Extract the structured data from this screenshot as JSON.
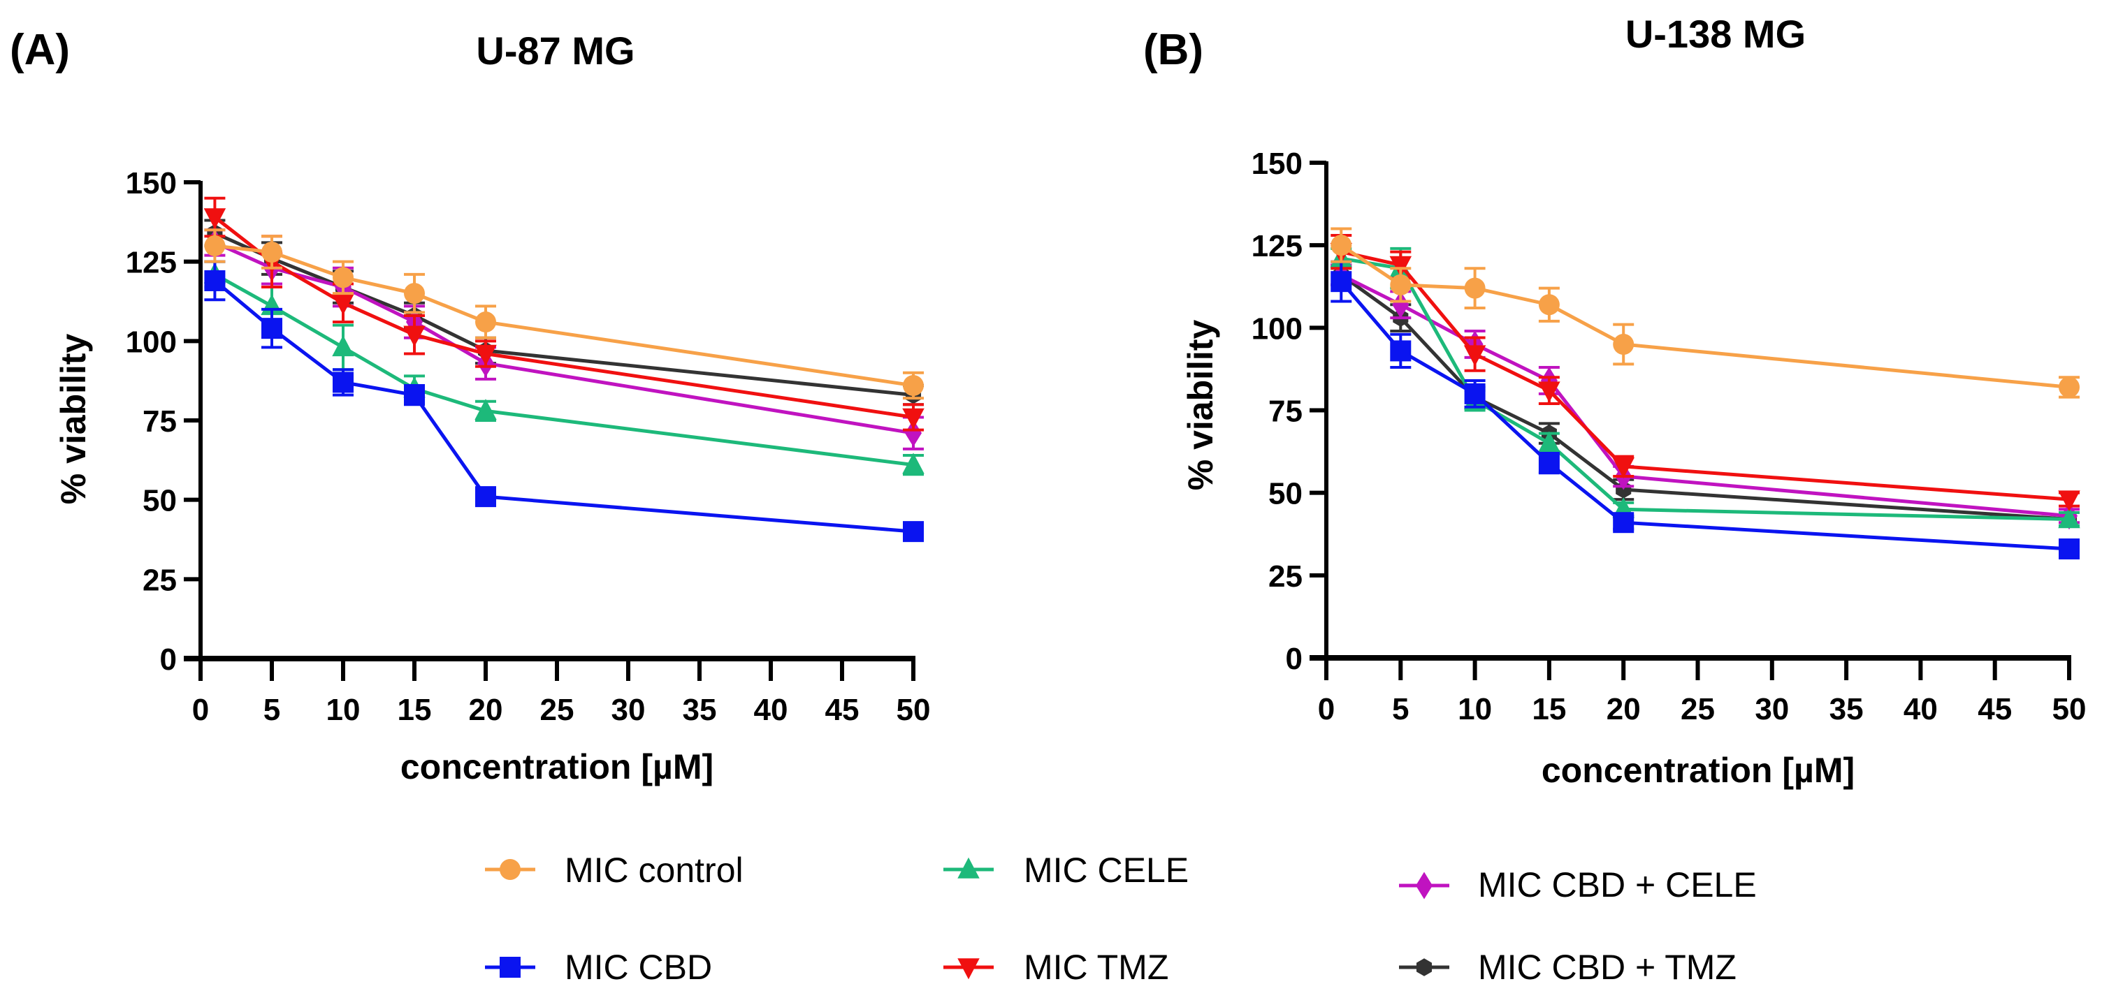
{
  "figure": {
    "legend": [
      {
        "key": "control",
        "label": "MIC control",
        "color": "#F7A148",
        "marker": "circle"
      },
      {
        "key": "cele",
        "label": "MIC CELE",
        "color": "#1DB97A",
        "marker": "triangle-up"
      },
      {
        "key": "cbd_cele",
        "label": "MIC CBD + CELE",
        "color": "#C013C0",
        "marker": "diamond"
      },
      {
        "key": "cbd",
        "label": "MIC CBD",
        "color": "#0A14F0",
        "marker": "square"
      },
      {
        "key": "tmz",
        "label": "MIC TMZ",
        "color": "#F01010",
        "marker": "triangle-down"
      },
      {
        "key": "cbd_tmz",
        "label": "MIC CBD + TMZ",
        "color": "#333333",
        "marker": "hexagon"
      }
    ]
  },
  "chart_data": [
    {
      "type": "line",
      "panel": "(A)",
      "title": "U-87 MG",
      "xlabel": "concentration [µM]",
      "ylabel": "% viability",
      "xlim": [
        0,
        50
      ],
      "ylim": [
        0,
        150
      ],
      "xticks": [
        0,
        5,
        10,
        15,
        20,
        25,
        30,
        35,
        40,
        45,
        50
      ],
      "yticks": [
        0,
        25,
        50,
        75,
        100,
        125,
        150
      ],
      "grid": false,
      "legend_position": "bottom",
      "x": [
        1,
        5,
        10,
        15,
        20,
        50
      ],
      "series": [
        {
          "key": "control",
          "name": "MIC control",
          "values": [
            130,
            128,
            120,
            115,
            106,
            86
          ],
          "errors": [
            5,
            5,
            5,
            6,
            5,
            4
          ]
        },
        {
          "key": "cele",
          "name": "MIC CELE",
          "values": [
            121,
            111,
            98,
            85,
            78,
            61
          ],
          "errors": [
            4,
            6,
            7,
            4,
            3,
            3
          ]
        },
        {
          "key": "cbd_cele",
          "name": "MIC CBD + CELE",
          "values": [
            131,
            123,
            117,
            106,
            93,
            71
          ],
          "errors": [
            4,
            5,
            6,
            5,
            5,
            5
          ]
        },
        {
          "key": "cbd",
          "name": "MIC CBD",
          "values": [
            119,
            104,
            87,
            83,
            51,
            40
          ],
          "errors": [
            6,
            6,
            4,
            3,
            2,
            2
          ]
        },
        {
          "key": "tmz",
          "name": "MIC TMZ",
          "values": [
            139,
            125,
            112,
            102,
            96,
            76
          ],
          "errors": [
            6,
            8,
            6,
            6,
            4,
            4
          ]
        },
        {
          "key": "cbd_tmz",
          "name": "MIC CBD + TMZ",
          "values": [
            134,
            126,
            117,
            108,
            97,
            83
          ],
          "errors": [
            4,
            5,
            5,
            4,
            4,
            3
          ]
        }
      ]
    },
    {
      "type": "line",
      "panel": "(B)",
      "title": "U-138 MG",
      "xlabel": "concentration [µM]",
      "ylabel": "% viability",
      "xlim": [
        0,
        50
      ],
      "ylim": [
        0,
        150
      ],
      "xticks": [
        0,
        5,
        10,
        15,
        20,
        25,
        30,
        35,
        40,
        45,
        50
      ],
      "yticks": [
        0,
        25,
        50,
        75,
        100,
        125,
        150
      ],
      "grid": false,
      "legend_position": "bottom",
      "x": [
        1,
        5,
        10,
        15,
        20,
        50
      ],
      "series": [
        {
          "key": "control",
          "name": "MIC control",
          "values": [
            125,
            113,
            112,
            107,
            95,
            82
          ],
          "errors": [
            5,
            5,
            6,
            5,
            6,
            3
          ]
        },
        {
          "key": "cele",
          "name": "MIC CELE",
          "values": [
            121,
            118,
            78,
            65,
            45,
            42
          ],
          "errors": [
            3,
            6,
            3,
            3,
            2,
            2
          ]
        },
        {
          "key": "cbd_cele",
          "name": "MIC CBD + CELE",
          "values": [
            116,
            107,
            95,
            84,
            55,
            43
          ],
          "errors": [
            3,
            4,
            4,
            4,
            3,
            2
          ]
        },
        {
          "key": "cbd",
          "name": "MIC CBD",
          "values": [
            114,
            93,
            80,
            59,
            41,
            33
          ],
          "errors": [
            6,
            5,
            4,
            3,
            2,
            2
          ]
        },
        {
          "key": "tmz",
          "name": "MIC TMZ",
          "values": [
            123,
            119,
            92,
            81,
            58,
            48
          ],
          "errors": [
            5,
            4,
            5,
            4,
            3,
            2
          ]
        },
        {
          "key": "cbd_tmz",
          "name": "MIC CBD + TMZ",
          "values": [
            116,
            103,
            79,
            68,
            51,
            42
          ],
          "errors": [
            3,
            4,
            3,
            3,
            3,
            2
          ]
        }
      ]
    }
  ]
}
